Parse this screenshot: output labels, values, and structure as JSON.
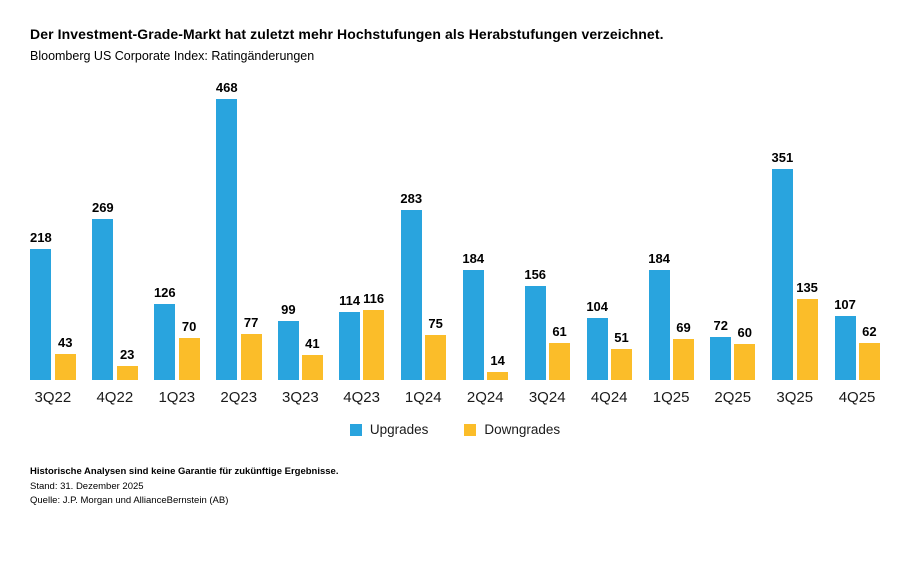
{
  "header": {
    "title": "Der Investment-Grade-Markt hat zuletzt mehr Hochstufungen als Herabstufungen verzeichnet.",
    "subtitle": "Bloomberg US Corporate Index: Ratingänderungen"
  },
  "chart_data": {
    "type": "bar",
    "categories": [
      "3Q22",
      "4Q22",
      "1Q23",
      "2Q23",
      "3Q23",
      "4Q23",
      "1Q24",
      "2Q24",
      "3Q24",
      "4Q24",
      "1Q25",
      "2Q25",
      "3Q25",
      "4Q25"
    ],
    "series": [
      {
        "name": "Upgrades",
        "color": "#29A4DE",
        "values": [
          218,
          269,
          126,
          468,
          99,
          114,
          283,
          184,
          156,
          104,
          184,
          72,
          351,
          107
        ]
      },
      {
        "name": "Downgrades",
        "color": "#FBBD29",
        "values": [
          43,
          23,
          70,
          77,
          41,
          116,
          75,
          14,
          61,
          51,
          69,
          60,
          135,
          62
        ]
      }
    ],
    "title": "Bloomberg US Corporate Index: Ratingänderungen",
    "xlabel": "",
    "ylabel": "",
    "ylim": [
      0,
      480
    ],
    "grid": false,
    "value_labels": true,
    "legend_position": "bottom"
  },
  "footer": {
    "disclaimer": "Historische Analysen sind keine Garantie für zukünftige Ergebnisse.",
    "as_of": "Stand: 31. Dezember 2025",
    "source": "Quelle: J.P. Morgan und AllianceBernstein (AB)"
  }
}
